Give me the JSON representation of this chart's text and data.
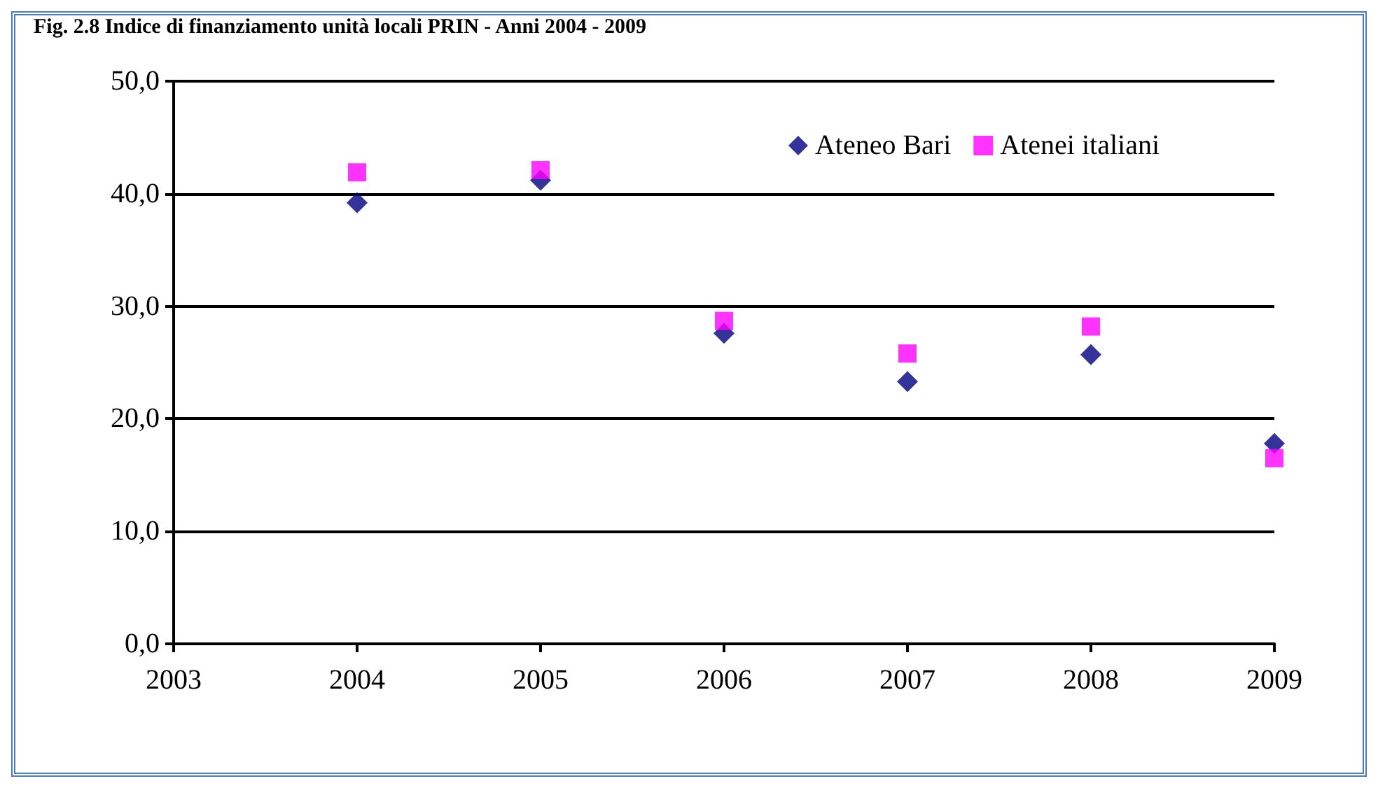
{
  "chart_data": {
    "type": "scatter",
    "title": "Fig. 2.8 Indice di finanziamento unità locali PRIN - Anni 2004 - 2009",
    "x": [
      2004,
      2005,
      2006,
      2007,
      2008,
      2009
    ],
    "series": [
      {
        "name": "Ateneo Bari",
        "color": "#000080",
        "marker": "diamond",
        "values": [
          39.2,
          41.2,
          27.6,
          23.3,
          25.7,
          17.8
        ]
      },
      {
        "name": "Atenei italiani",
        "color": "#ff00ff",
        "marker": "square",
        "values": [
          41.9,
          42.1,
          28.7,
          25.8,
          28.2,
          16.5
        ]
      }
    ],
    "xlim": [
      2003,
      2009
    ],
    "xticks": [
      2003,
      2004,
      2005,
      2006,
      2007,
      2008,
      2009
    ],
    "ylim": [
      0,
      50
    ],
    "yticks": [
      {
        "value": 0,
        "label": "0,0"
      },
      {
        "value": 10,
        "label": "10,0"
      },
      {
        "value": 20,
        "label": "20,0"
      },
      {
        "value": 30,
        "label": "30,0"
      },
      {
        "value": 40,
        "label": "40,0"
      },
      {
        "value": 50,
        "label": "50,0"
      }
    ],
    "grid": "y",
    "legend": "top right"
  }
}
